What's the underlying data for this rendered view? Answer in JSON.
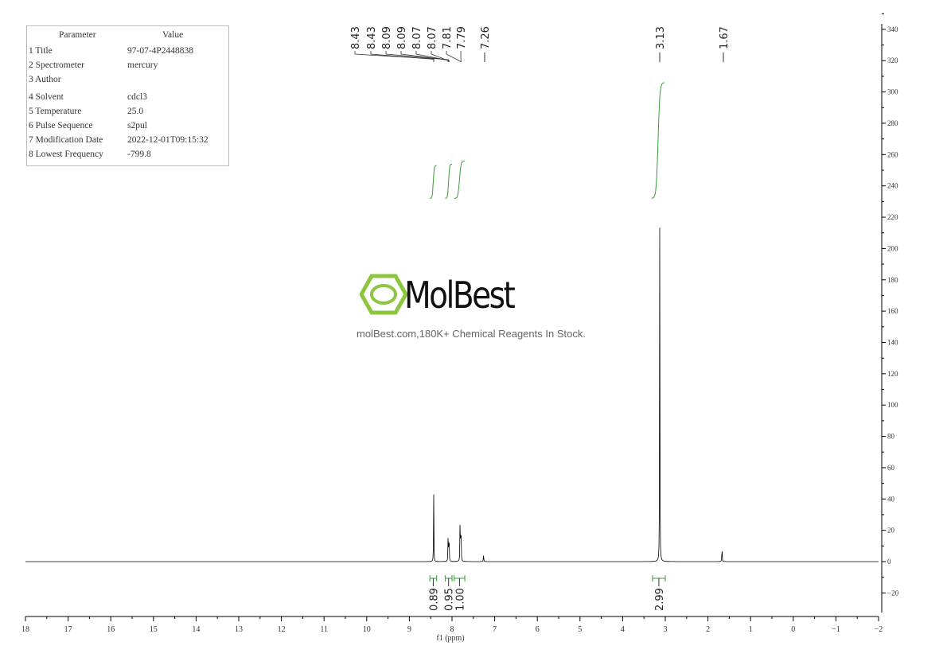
{
  "parameters": {
    "header": [
      "Parameter",
      "Value"
    ],
    "rows": [
      [
        "1 Title",
        "97-07-4P2448838"
      ],
      [
        "2 Spectrometer",
        "mercury"
      ],
      [
        "3 Author",
        ""
      ],
      [
        "4 Solvent",
        "cdcl3"
      ],
      [
        "5 Temperature",
        "25.0"
      ],
      [
        "6 Pulse Sequence",
        "s2pul"
      ],
      [
        "7 Modification Date",
        "2022-12-01T09:15:32"
      ],
      [
        "8 Lowest Frequency",
        "-799.8"
      ]
    ]
  },
  "watermark": {
    "brand": "MolBest",
    "tagline": "molBest.com,180K+ Chemical Reagents In Stock."
  },
  "chart_data": {
    "type": "line",
    "title": "",
    "xlabel": "f1 (ppm)",
    "ylabel": "",
    "xlim": [
      18,
      -2
    ],
    "ylim": [
      -35,
      345
    ],
    "xticks": [
      18,
      17,
      16,
      15,
      14,
      13,
      12,
      11,
      10,
      9,
      8,
      7,
      6,
      5,
      4,
      3,
      2,
      1,
      0,
      -1,
      -2
    ],
    "yticks": [
      -20,
      0,
      20,
      40,
      60,
      80,
      100,
      120,
      140,
      160,
      180,
      200,
      220,
      240,
      260,
      280,
      300,
      320,
      340
    ],
    "peaks": [
      {
        "ppm": 8.43,
        "height": 45
      },
      {
        "ppm": 8.09,
        "height": 24
      },
      {
        "ppm": 8.07,
        "height": 25
      },
      {
        "ppm": 7.81,
        "height": 39
      },
      {
        "ppm": 7.79,
        "height": 35
      },
      {
        "ppm": 7.26,
        "height": 6
      },
      {
        "ppm": 3.13,
        "height": 218
      },
      {
        "ppm": 1.67,
        "height": 13
      }
    ],
    "peak_labels": [
      "8.43",
      "8.43",
      "8.09",
      "8.09",
      "8.07",
      "8.07",
      "7.81",
      "7.79",
      "7.26",
      "3.13",
      "1.67"
    ],
    "peak_label_ppm": [
      8.43,
      8.43,
      8.09,
      8.09,
      8.07,
      8.07,
      7.81,
      7.79,
      7.26,
      3.13,
      1.67
    ],
    "integrals": [
      {
        "from": 8.52,
        "to": 8.36,
        "value": "0.89"
      },
      {
        "from": 8.16,
        "to": 8.0,
        "value": "0.95"
      },
      {
        "from": 7.95,
        "to": 7.7,
        "value": "1.00"
      },
      {
        "from": 3.3,
        "to": 3.0,
        "value": "2.99"
      }
    ],
    "colors": {
      "spectrum": "#000000",
      "integral": "#3a9a3a",
      "logo": "#8cc63f"
    }
  }
}
